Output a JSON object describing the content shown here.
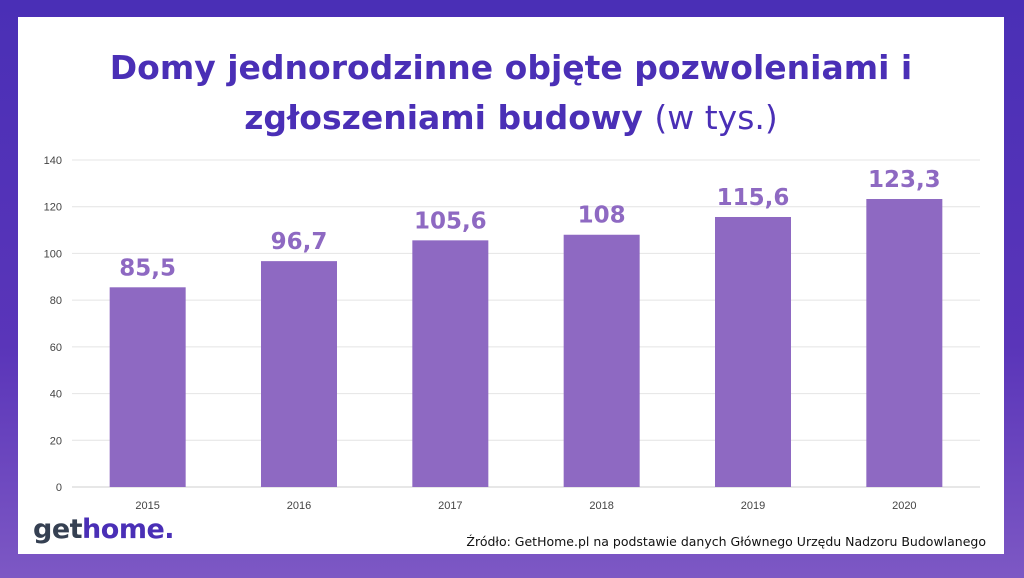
{
  "title": {
    "line1": "Domy jednorodzinne objęte pozwoleniami i",
    "line2": "zgłoszeniami budowy",
    "unit": "(w tys.)"
  },
  "logo": {
    "part1": "get",
    "part2": "home."
  },
  "source": "Źródło: GetHome.pl na podstawie danych Głównego Urzędu Nadzoru Budowlanego",
  "colors": {
    "bar": "#8e69c2",
    "title": "#4a2fb6",
    "background": "#4a2fb6"
  },
  "chart_data": {
    "type": "bar",
    "categories": [
      "2015",
      "2016",
      "2017",
      "2018",
      "2019",
      "2020"
    ],
    "values": [
      85.5,
      96.7,
      105.6,
      108,
      115.6,
      123.3
    ],
    "data_labels": [
      "85,5",
      "96,7",
      "105,6",
      "108",
      "115,6",
      "123,3"
    ],
    "y_ticks": [
      0,
      20,
      40,
      60,
      80,
      100,
      120,
      140
    ],
    "ylim": [
      0,
      140
    ],
    "grid": true
  }
}
